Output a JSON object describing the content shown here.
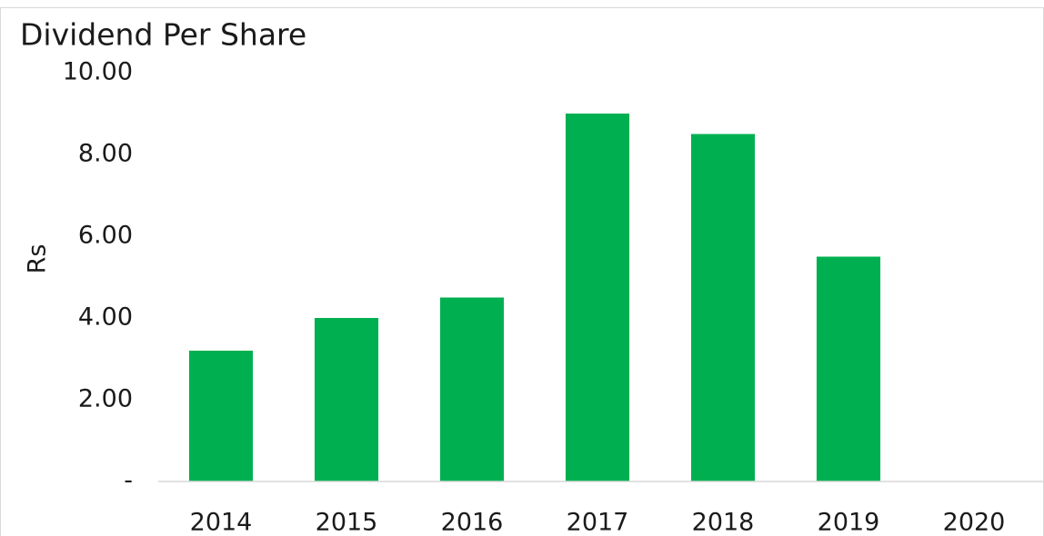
{
  "chart_data": {
    "type": "bar",
    "title": "Dividend Per Share",
    "y_label": "Rs",
    "categories": [
      "2014",
      "2015",
      "2016",
      "2017",
      "2018",
      "2019",
      "2020"
    ],
    "values": [
      3.2,
      4.0,
      4.5,
      9.0,
      8.5,
      5.5,
      0
    ],
    "color": "#00b050",
    "ylim": [
      0,
      10
    ],
    "yticks": [
      {
        "value": 0,
        "label": "-"
      },
      {
        "value": 2,
        "label": "2.00"
      },
      {
        "value": 4,
        "label": "4.00"
      },
      {
        "value": 6,
        "label": "6.00"
      },
      {
        "value": 8,
        "label": "8.00"
      },
      {
        "value": 10,
        "label": "10.00"
      }
    ],
    "grid": false
  }
}
